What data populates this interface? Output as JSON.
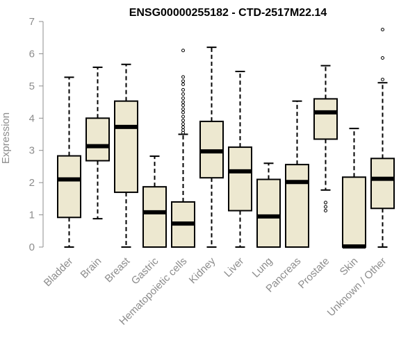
{
  "chart_data": {
    "type": "box",
    "title": "ENSG00000255182 - CTD-2517M22.14",
    "ylabel": "Expression",
    "xlabel": "",
    "ylim": [
      0,
      7
    ],
    "yticks": [
      "0",
      "1",
      "2",
      "3",
      "4",
      "5",
      "6",
      "7"
    ],
    "box_fill": "#ede8d0",
    "box_stroke": "#000000",
    "categories": [
      "Bladder",
      "Brain",
      "Breast",
      "Gastric",
      "Hematopoietic cells",
      "Kidney",
      "Liver",
      "Lung",
      "Pancreas",
      "Prostate",
      "Skin",
      "Unknown / Other"
    ],
    "boxes": [
      {
        "whisker_low": 0,
        "q1": 0.92,
        "median": 2.1,
        "q3": 2.83,
        "whisker_high": 5.27,
        "outliers": []
      },
      {
        "whisker_low": 0.88,
        "q1": 2.68,
        "median": 3.13,
        "q3": 4.0,
        "whisker_high": 5.58,
        "outliers": []
      },
      {
        "whisker_low": 0,
        "q1": 1.7,
        "median": 3.73,
        "q3": 4.53,
        "whisker_high": 5.67,
        "outliers": []
      },
      {
        "whisker_low": 0,
        "q1": 0,
        "median": 1.08,
        "q3": 1.87,
        "whisker_high": 2.82,
        "outliers": []
      },
      {
        "whisker_low": 0,
        "q1": 0,
        "median": 0.73,
        "q3": 1.4,
        "whisker_high": 3.5,
        "outliers": [
          3.55,
          3.63,
          3.72,
          3.82,
          3.93,
          4.05,
          4.18,
          4.28,
          4.4,
          4.5,
          4.62,
          4.75,
          4.88,
          5.05,
          5.15,
          5.28,
          6.1
        ]
      },
      {
        "whisker_low": 0,
        "q1": 2.15,
        "median": 2.97,
        "q3": 3.9,
        "whisker_high": 6.2,
        "outliers": []
      },
      {
        "whisker_low": 0,
        "q1": 1.13,
        "median": 2.35,
        "q3": 3.1,
        "whisker_high": 5.45,
        "outliers": []
      },
      {
        "whisker_low": 0,
        "q1": 0,
        "median": 0.95,
        "q3": 2.1,
        "whisker_high": 2.6,
        "outliers": []
      },
      {
        "whisker_low": 0,
        "q1": 0,
        "median": 2.02,
        "q3": 2.56,
        "whisker_high": 4.53,
        "outliers": []
      },
      {
        "whisker_low": 1.77,
        "q1": 3.35,
        "median": 4.18,
        "q3": 4.6,
        "whisker_high": 5.63,
        "outliers": [
          1.13,
          1.25,
          1.38
        ]
      },
      {
        "whisker_low": 0,
        "q1": 0,
        "median": 0.02,
        "q3": 2.17,
        "whisker_high": 3.68,
        "outliers": []
      },
      {
        "whisker_low": 0,
        "q1": 1.2,
        "median": 2.12,
        "q3": 2.75,
        "whisker_high": 5.1,
        "outliers": [
          5.2,
          5.87,
          6.75
        ]
      }
    ]
  }
}
